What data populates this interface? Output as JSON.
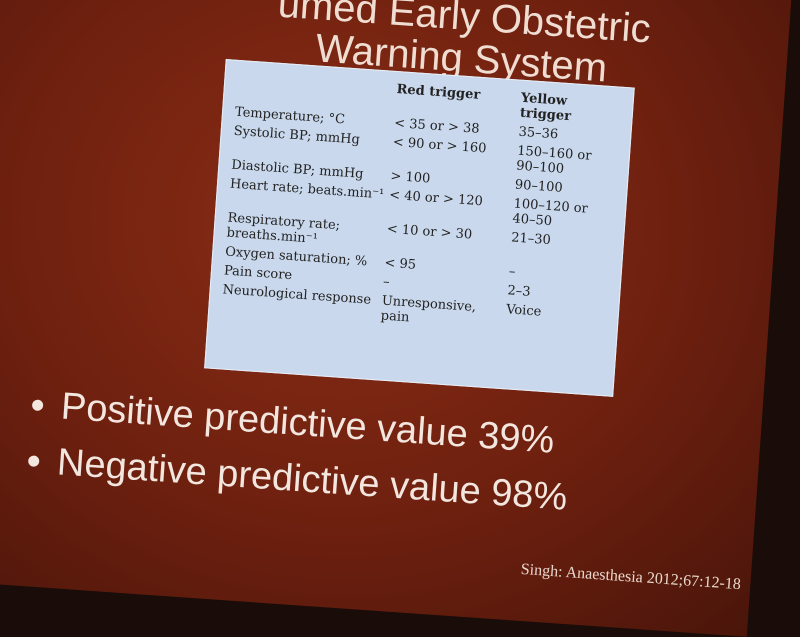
{
  "slide": {
    "title": [
      "umed Early Obstetric",
      "Warning System"
    ],
    "table": {
      "header": [
        "Red trigger",
        "Yellow trigger"
      ],
      "rows": [
        {
          "parameter": "Temperature; °C",
          "red": "< 35 or > 38",
          "yellow": "35–36"
        },
        {
          "parameter": "Systolic BP; mmHg",
          "red": "< 90 or > 160",
          "yellow": "150–160 or 90–100"
        },
        {
          "parameter": "Diastolic BP; mmHg",
          "red": "> 100",
          "yellow": "90–100"
        },
        {
          "parameter": "Heart rate; beats.min⁻¹",
          "red": "< 40 or > 120",
          "yellow": "100–120 or 40–50"
        },
        {
          "parameter": "Respiratory rate; breaths.min⁻¹",
          "red": "< 10 or > 30",
          "yellow": "21–30"
        },
        {
          "parameter": "Oxygen saturation; %",
          "red": "< 95",
          "yellow": "–"
        },
        {
          "parameter": "Pain score",
          "red": "–",
          "yellow": "2–3"
        },
        {
          "parameter": "Neurological response",
          "red": "Unresponsive, pain",
          "yellow": "Voice"
        }
      ]
    },
    "bullets": [
      "Positive predictive value 39%",
      "Negative predictive value 98%"
    ],
    "citation": "Singh: Anaesthesia 2012;67:12-18"
  }
}
